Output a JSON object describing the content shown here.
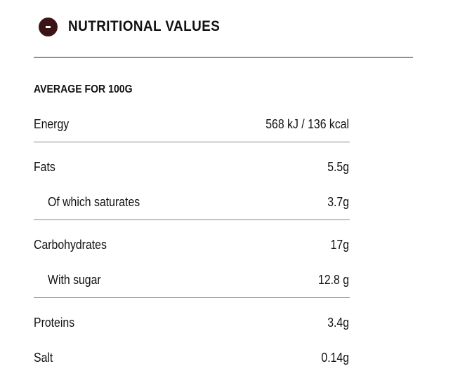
{
  "header": {
    "title": "NUTRITIONAL VALUES"
  },
  "table": {
    "heading": "AVERAGE FOR 100G",
    "sections": [
      [
        {
          "label": "Energy",
          "value": "568 kJ / 136 kcal"
        }
      ],
      [
        {
          "label": "Fats",
          "value": "5.5g",
          "parts": [
            {
              "label": "Of which saturates",
              "value": "3.7g"
            }
          ]
        }
      ],
      [
        {
          "label": "Carbohydrates",
          "value": "17g",
          "parts": [
            {
              "label": "With sugar",
              "value": "12.8 g"
            }
          ]
        }
      ],
      [
        {
          "label": "Proteins",
          "value": "3.4g"
        },
        {
          "label": "Salt",
          "value": "0.14g"
        }
      ]
    ]
  }
}
